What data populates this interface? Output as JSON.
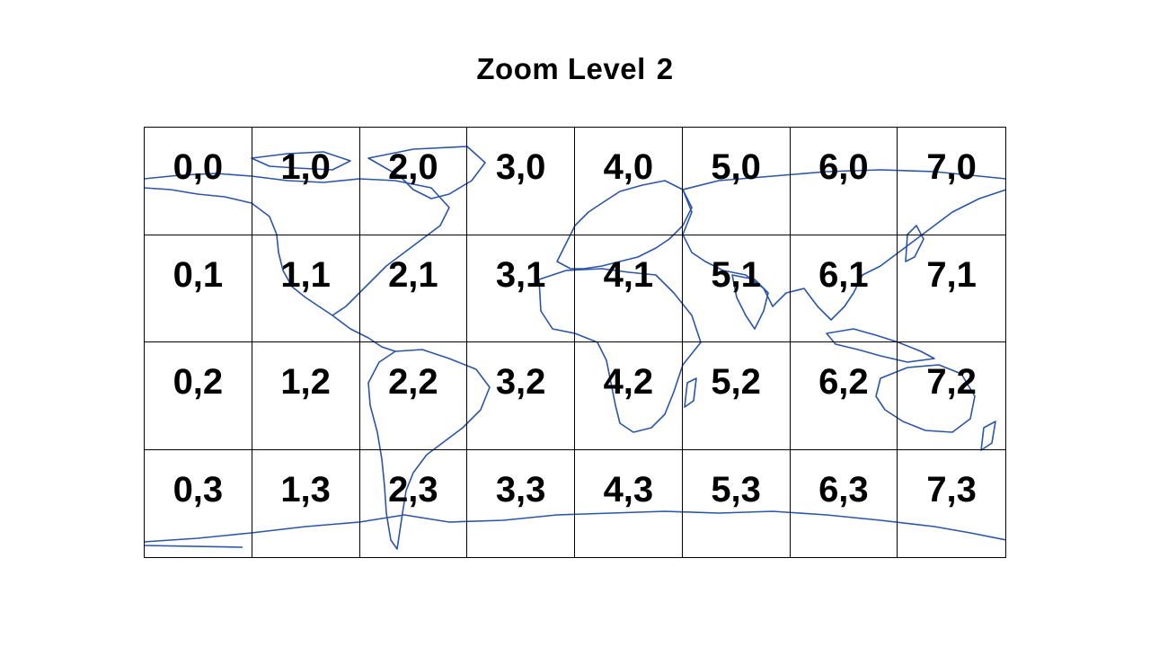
{
  "title": {
    "text": "Zoom Level",
    "level": "2"
  },
  "map": {
    "line_color": "#2b55a8"
  },
  "tiles": [
    [
      "0,0",
      "1,0",
      "2,0",
      "3,0",
      "4,0",
      "5,0",
      "6,0",
      "7,0"
    ],
    [
      "0,1",
      "1,1",
      "2,1",
      "3,1",
      "4,1",
      "5,1",
      "6,1",
      "7,1"
    ],
    [
      "0,2",
      "1,2",
      "2,2",
      "3,2",
      "4,2",
      "5,2",
      "6,2",
      "7,2"
    ],
    [
      "0,3",
      "1,3",
      "2,3",
      "3,3",
      "4,3",
      "5,3",
      "6,3",
      "7,3"
    ]
  ]
}
